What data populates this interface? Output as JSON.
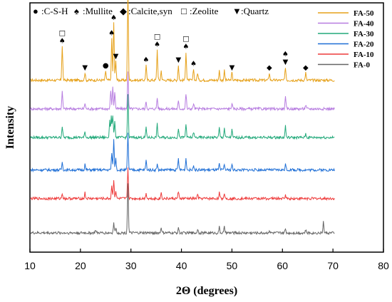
{
  "chart_data": {
    "type": "line",
    "xlabel": "2Θ (degrees)",
    "ylabel": "Intensity",
    "xlim": [
      10,
      80
    ],
    "x_ticks": [
      10,
      20,
      30,
      40,
      50,
      60,
      70,
      80
    ],
    "y_ticks_shown": false,
    "legend_position": "top-right",
    "series": [
      {
        "name": "FA-50",
        "color": "#E6A11A",
        "baseline": 8.0,
        "peaks": [
          [
            16.4,
            1.8
          ],
          [
            20.9,
            0.4
          ],
          [
            25.0,
            0.5
          ],
          [
            26.2,
            2.2
          ],
          [
            26.6,
            3.0
          ],
          [
            27.0,
            1.0
          ],
          [
            29.4,
            4.8
          ],
          [
            33.0,
            0.8
          ],
          [
            35.2,
            1.6
          ],
          [
            36.0,
            0.5
          ],
          [
            39.4,
            0.8
          ],
          [
            40.9,
            1.5
          ],
          [
            42.4,
            0.6
          ],
          [
            43.2,
            0.4
          ],
          [
            47.5,
            0.5
          ],
          [
            48.5,
            0.5
          ],
          [
            50.0,
            0.4
          ],
          [
            57.4,
            0.4
          ],
          [
            60.6,
            0.7
          ],
          [
            64.6,
            0.4
          ]
        ]
      },
      {
        "name": "FA-40",
        "color": "#B77DE0",
        "baseline": 6.5,
        "peaks": [
          [
            16.4,
            0.9
          ],
          [
            20.9,
            0.3
          ],
          [
            26.0,
            1.0
          ],
          [
            26.4,
            1.2
          ],
          [
            26.8,
            0.9
          ],
          [
            29.4,
            2.0
          ],
          [
            33.0,
            0.4
          ],
          [
            35.2,
            0.6
          ],
          [
            39.4,
            0.4
          ],
          [
            40.9,
            0.8
          ],
          [
            42.4,
            0.3
          ],
          [
            50.0,
            0.3
          ],
          [
            60.6,
            0.6
          ],
          [
            64.6,
            0.2
          ]
        ]
      },
      {
        "name": "FA-30",
        "color": "#22A97A",
        "baseline": 5.0,
        "peaks": [
          [
            16.4,
            0.6
          ],
          [
            20.9,
            0.3
          ],
          [
            25.8,
            0.9
          ],
          [
            26.1,
            1.1
          ],
          [
            26.4,
            1.2
          ],
          [
            26.8,
            0.9
          ],
          [
            29.4,
            2.2
          ],
          [
            33.0,
            0.5
          ],
          [
            35.2,
            0.7
          ],
          [
            39.4,
            0.5
          ],
          [
            40.9,
            0.7
          ],
          [
            42.4,
            0.3
          ],
          [
            47.5,
            0.5
          ],
          [
            48.5,
            0.5
          ],
          [
            50.0,
            0.4
          ],
          [
            60.6,
            0.6
          ],
          [
            64.6,
            0.2
          ]
        ]
      },
      {
        "name": "FA-20",
        "color": "#1F6FD6",
        "baseline": 3.3,
        "peaks": [
          [
            16.4,
            0.4
          ],
          [
            20.9,
            0.3
          ],
          [
            26.2,
            0.9
          ],
          [
            26.6,
            1.6
          ],
          [
            27.0,
            0.6
          ],
          [
            29.4,
            1.9
          ],
          [
            33.0,
            0.5
          ],
          [
            35.2,
            0.3
          ],
          [
            39.4,
            0.6
          ],
          [
            40.9,
            0.6
          ],
          [
            42.4,
            0.3
          ],
          [
            47.5,
            0.3
          ],
          [
            48.5,
            0.3
          ],
          [
            50.0,
            0.3
          ],
          [
            60.6,
            0.3
          ]
        ]
      },
      {
        "name": "FA-10",
        "color": "#EE3A3A",
        "baseline": 1.8,
        "peaks": [
          [
            16.4,
            0.3
          ],
          [
            20.9,
            0.3
          ],
          [
            26.2,
            0.7
          ],
          [
            26.6,
            1.0
          ],
          [
            27.0,
            0.4
          ],
          [
            29.4,
            1.6
          ],
          [
            33.0,
            0.3
          ],
          [
            36.0,
            0.3
          ],
          [
            39.4,
            0.4
          ],
          [
            43.2,
            0.2
          ],
          [
            47.5,
            0.3
          ],
          [
            48.5,
            0.3
          ],
          [
            60.6,
            0.2
          ]
        ]
      },
      {
        "name": "FA-0",
        "color": "#666666",
        "baseline": 0.0,
        "peaks": [
          [
            23.0,
            0.15
          ],
          [
            26.6,
            0.5
          ],
          [
            27.0,
            0.3
          ],
          [
            29.4,
            2.6
          ],
          [
            36.0,
            0.3
          ],
          [
            39.4,
            0.3
          ],
          [
            43.2,
            0.2
          ],
          [
            47.5,
            0.3
          ],
          [
            48.5,
            0.3
          ],
          [
            57.4,
            0.15
          ],
          [
            60.6,
            0.2
          ],
          [
            64.6,
            0.15
          ],
          [
            68.1,
            0.6
          ]
        ]
      }
    ],
    "phase_key": [
      {
        "symbol": "●",
        "label": ":C-S-H"
      },
      {
        "symbol": "♠",
        "label": ":Mullite"
      },
      {
        "symbol": "◆",
        "label": ":Calcite,syn"
      },
      {
        "symbol": "□",
        "label": ":Zeolite"
      },
      {
        "symbol": "▼",
        "label": ":Quartz"
      }
    ],
    "annotations": [
      {
        "x": 16.4,
        "symbols": [
          "□",
          "♠"
        ]
      },
      {
        "x": 20.9,
        "symbols": [
          "▼"
        ]
      },
      {
        "x": 25.0,
        "symbols": [
          "●"
        ]
      },
      {
        "x": 26.2,
        "symbols": [
          "♠"
        ]
      },
      {
        "x": 26.6,
        "symbols": [
          "♠"
        ]
      },
      {
        "x": 27.0,
        "symbols": [
          "▼"
        ]
      },
      {
        "x": 29.4,
        "symbols": [
          "◆",
          "●"
        ]
      },
      {
        "x": 33.0,
        "symbols": [
          "♠"
        ]
      },
      {
        "x": 35.2,
        "symbols": [
          "□",
          "♠"
        ]
      },
      {
        "x": 39.4,
        "symbols": [
          "▼"
        ]
      },
      {
        "x": 40.9,
        "symbols": [
          "□",
          "♠"
        ]
      },
      {
        "x": 42.4,
        "symbols": [
          "♠"
        ]
      },
      {
        "x": 50.0,
        "symbols": [
          "▼"
        ]
      },
      {
        "x": 57.4,
        "symbols": [
          "◆"
        ]
      },
      {
        "x": 60.6,
        "symbols": [
          "♠",
          "▼"
        ]
      },
      {
        "x": 64.6,
        "symbols": [
          "◆"
        ]
      }
    ]
  }
}
